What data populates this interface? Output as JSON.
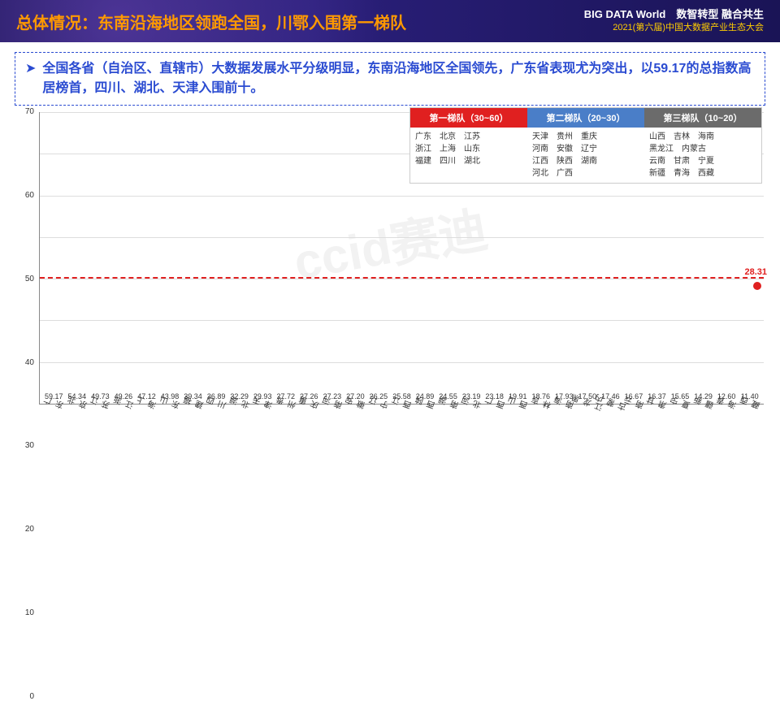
{
  "header": {
    "title": "总体情况：东南沿海地区领跑全国，川鄂入围第一梯队",
    "logo_top": "BIG DATA World",
    "logo_sub": "中国大数据产业生态大会",
    "right1": "数智转型 融合共生",
    "right2": "2021(第六届)中国大数据产业生态大会"
  },
  "subtitle": "全国各省（自治区、直辖市）大数据发展水平分级明显，东南沿海地区全国领先，广东省表现尤为突出，以59.17的总指数高居榜首，四川、湖北、天津入围前十。",
  "watermark": "ccid赛迪",
  "chart": {
    "type": "bar",
    "ylim": [
      0,
      70
    ],
    "ytick_step": 10,
    "background": "#ffffff",
    "grid_color": "#dddddd",
    "reference_line": 30,
    "reference_color": "#e02020",
    "avg_value": 28.31,
    "tier1_color": "#e02020",
    "tier2_color": "#f5a623",
    "tier3_color": "#4a7ec8",
    "tier4_color": "#7a4fb8",
    "label_fontsize": 9,
    "axis_fontsize": 10,
    "bars": [
      {
        "name": "广东",
        "value": 59.17,
        "color": "#e02020"
      },
      {
        "name": "北京",
        "value": 54.34,
        "color": "#e02020"
      },
      {
        "name": "江苏",
        "value": 49.73,
        "color": "#e02020"
      },
      {
        "name": "浙江",
        "value": 49.26,
        "color": "#e02020"
      },
      {
        "name": "上海",
        "value": 47.12,
        "color": "#e02020"
      },
      {
        "name": "山东",
        "value": 43.98,
        "color": "#e02020"
      },
      {
        "name": "福建",
        "value": 39.34,
        "color": "#f5a623"
      },
      {
        "name": "四川",
        "value": 36.89,
        "color": "#f5a623"
      },
      {
        "name": "湖北",
        "value": 32.29,
        "color": "#f5a623"
      },
      {
        "name": "天津",
        "value": 29.93,
        "color": "#4a7ec8"
      },
      {
        "name": "贵州",
        "value": 27.72,
        "color": "#4a7ec8"
      },
      {
        "name": "重庆",
        "value": 27.26,
        "color": "#4a7ec8"
      },
      {
        "name": "河南",
        "value": 27.23,
        "color": "#4a7ec8"
      },
      {
        "name": "安徽",
        "value": 27.2,
        "color": "#4a7ec8"
      },
      {
        "name": "辽宁",
        "value": 26.25,
        "color": "#4a7ec8"
      },
      {
        "name": "江西",
        "value": 25.58,
        "color": "#4a7ec8"
      },
      {
        "name": "陕西",
        "value": 24.89,
        "color": "#4a7ec8"
      },
      {
        "name": "湖南",
        "value": 24.55,
        "color": "#4a7ec8"
      },
      {
        "name": "河北",
        "value": 23.19,
        "color": "#4a7ec8"
      },
      {
        "name": "广西",
        "value": 23.18,
        "color": "#4a7ec8"
      },
      {
        "name": "山西",
        "value": 19.91,
        "color": "#7a4fb8"
      },
      {
        "name": "吉林",
        "value": 18.76,
        "color": "#7a4fb8"
      },
      {
        "name": "海南",
        "value": 17.93,
        "color": "#7a4fb8"
      },
      {
        "name": "黑龙江",
        "value": 17.5,
        "color": "#7a4fb8"
      },
      {
        "name": "内蒙古",
        "value": 17.46,
        "color": "#7a4fb8"
      },
      {
        "name": "云南",
        "value": 16.67,
        "color": "#7a4fb8"
      },
      {
        "name": "甘肃",
        "value": 16.37,
        "color": "#7a4fb8"
      },
      {
        "name": "宁夏",
        "value": 15.65,
        "color": "#7a4fb8"
      },
      {
        "name": "新疆",
        "value": 14.29,
        "color": "#7a4fb8"
      },
      {
        "name": "青海",
        "value": 12.6,
        "color": "#7a4fb8"
      },
      {
        "name": "西藏",
        "value": 11.4,
        "color": "#7a4fb8"
      }
    ]
  },
  "legend": {
    "tiers": [
      {
        "title": "第一梯队（30~60）",
        "color": "#e02020",
        "rows": [
          "广东　北京　江苏",
          "浙江　上海　山东",
          "福建　四川　湖北"
        ]
      },
      {
        "title": "第二梯队（20~30）",
        "color": "#4a7ec8",
        "rows": [
          "天津　贵州　重庆",
          "河南　安徽　辽宁",
          "江西　陕西　湖南",
          "河北　广西"
        ]
      },
      {
        "title": "第三梯队（10~20）",
        "color": "#6b6b6b",
        "rows": [
          "山西　吉林　海南",
          "黑龙江　内蒙古",
          "云南　甘肃　宁夏",
          "新疆　青海　西藏"
        ]
      }
    ]
  }
}
